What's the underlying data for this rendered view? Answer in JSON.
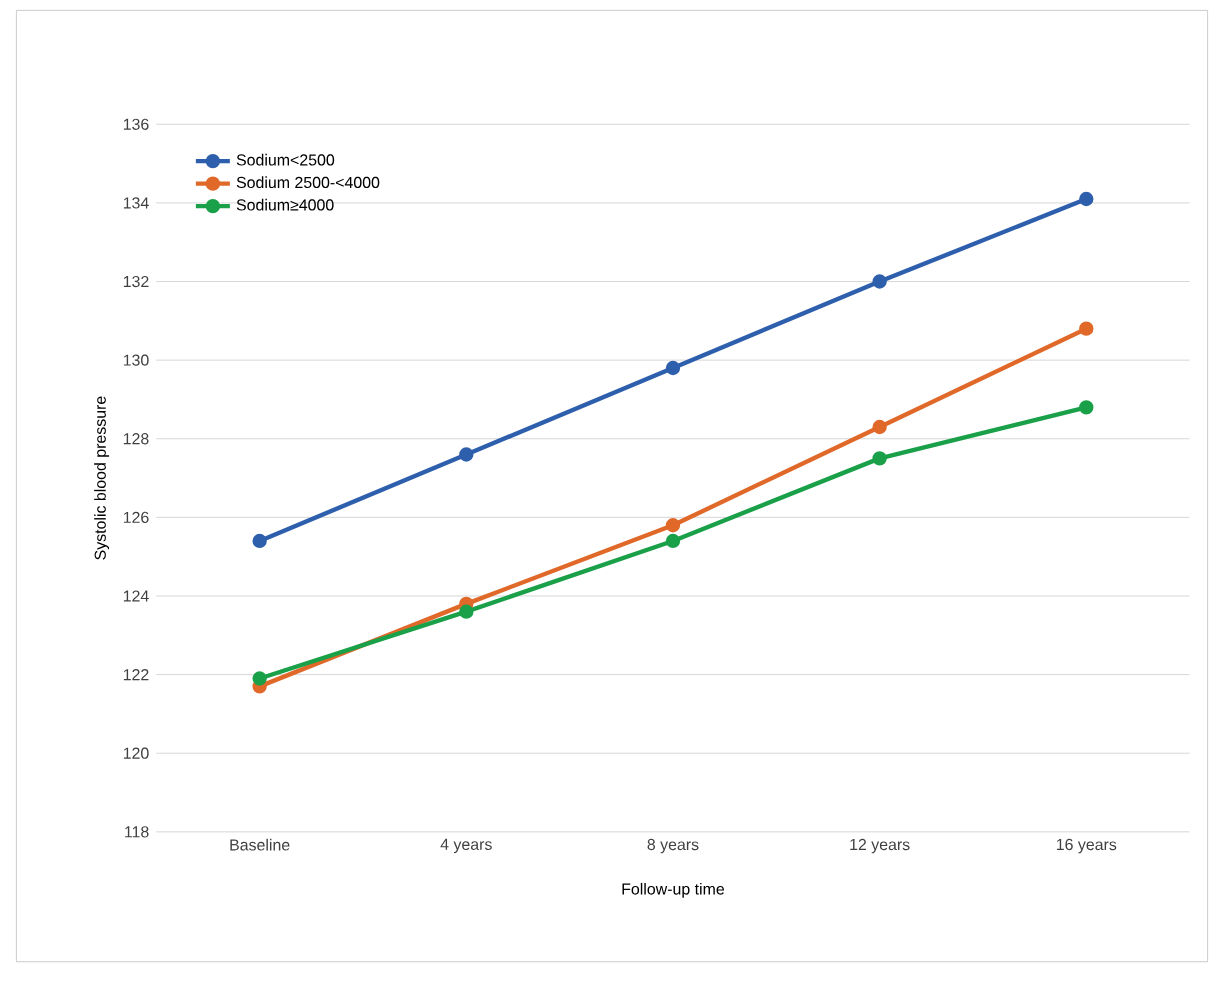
{
  "chart_data": {
    "type": "line",
    "xlabel": "Follow-up time",
    "ylabel": "Systolic blood pressure",
    "categories": [
      "Baseline",
      "4 years",
      "8 years",
      "12 years",
      "16 years"
    ],
    "series": [
      {
        "name": "Sodium<2500",
        "color": "#2e5fac",
        "values": [
          125.4,
          127.6,
          129.8,
          132.0,
          134.1
        ]
      },
      {
        "name": "Sodium 2500-<4000",
        "color": "#e0692a",
        "values": [
          121.7,
          123.8,
          125.8,
          128.3,
          130.8
        ]
      },
      {
        "name": "Sodium≥4000",
        "color": "#1aa049",
        "values": [
          121.9,
          123.6,
          125.4,
          127.5,
          128.8
        ]
      }
    ],
    "ylim": [
      118,
      136
    ],
    "yticks": [
      118,
      120,
      122,
      124,
      126,
      128,
      130,
      132,
      134,
      136
    ],
    "grid": "y",
    "legend": "top left",
    "marker": "circle",
    "line_style": "solid"
  }
}
